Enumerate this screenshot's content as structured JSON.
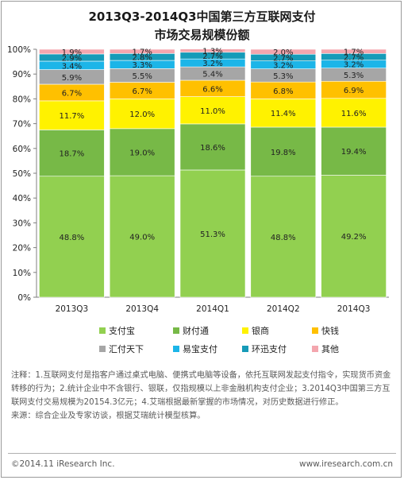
{
  "title_line1": "2013Q3-2014Q3中国第三方互联网支付",
  "title_line2": "市场交易规模份额",
  "chart_data": {
    "type": "bar",
    "stacked": true,
    "categories": [
      "2013Q3",
      "2013Q4",
      "2014Q1",
      "2014Q2",
      "2014Q3"
    ],
    "series": [
      {
        "name": "支付宝",
        "color": "#92D050",
        "label_color": "#222222",
        "values": [
          48.8,
          49.0,
          51.3,
          48.8,
          49.2
        ]
      },
      {
        "name": "财付通",
        "color": "#77B947",
        "label_color": "#222222",
        "values": [
          18.7,
          19.0,
          18.6,
          19.8,
          19.4
        ]
      },
      {
        "name": "银商",
        "color": "#FFF200",
        "label_color": "#222222",
        "values": [
          11.7,
          12.0,
          11.0,
          11.4,
          11.6
        ]
      },
      {
        "name": "快钱",
        "color": "#FFC000",
        "label_color": "#222222",
        "values": [
          6.7,
          6.7,
          6.6,
          6.8,
          6.9
        ]
      },
      {
        "name": "汇付天下",
        "color": "#A6A6A6",
        "label_color": "#222222",
        "values": [
          5.9,
          5.5,
          5.4,
          5.3,
          5.3
        ]
      },
      {
        "name": "易宝支付",
        "color": "#1CB5E8",
        "label_color": "#222222",
        "values": [
          3.4,
          3.3,
          3.2,
          3.2,
          3.2
        ]
      },
      {
        "name": "环迅支付",
        "color": "#169BB8",
        "label_color": "#222222",
        "values": [
          2.9,
          2.8,
          2.7,
          2.7,
          2.7
        ]
      },
      {
        "name": "其他",
        "color": "#F4A6AE",
        "label_color": "#222222",
        "values": [
          1.9,
          1.7,
          1.3,
          2.0,
          1.7
        ]
      }
    ],
    "ylim": [
      0,
      100
    ],
    "yticks": [
      "0%",
      "10%",
      "20%",
      "30%",
      "40%",
      "50%",
      "60%",
      "70%",
      "80%",
      "90%",
      "100%"
    ],
    "legend_position": "bottom",
    "grid": false
  },
  "notes": {
    "line1": "注释：1.互联网支付是指客户通过桌式电脑、便携式电脑等设备，依托互联网发起支付指令，实现货币资金转移的行为；2.统计企业中不含银行、银联，仅指规模以上非金融机构支付企业；3.2014Q3中国第三方互联网支付交易规模为20154.3亿元；4.艾瑞根据最新掌握的市场情况，对历史数据进行修正。",
    "line2": "来源：综合企业及专家访谈，根据艾瑞统计模型核算。"
  },
  "footer": {
    "copyright": "©2014.11 iResearch Inc.",
    "website": "www.iresearch.com.cn"
  }
}
